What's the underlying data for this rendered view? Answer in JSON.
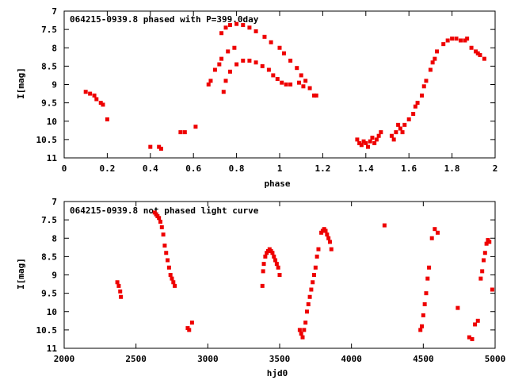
{
  "chart_data": [
    {
      "type": "scatter",
      "title": "064215-0939.8 phased with P=399.0day",
      "xlabel": "phase",
      "ylabel": "I[mag]",
      "xlim": [
        0,
        2
      ],
      "ylim": [
        7,
        11
      ],
      "y_inverted": true,
      "x_ticks": [
        "0",
        "0.2",
        "0.4",
        "0.6",
        "0.8",
        "1",
        "1.2",
        "1.4",
        "1.6",
        "1.8",
        "2"
      ],
      "x_tick_values": [
        0,
        0.2,
        0.4,
        0.6,
        0.8,
        1.0,
        1.2,
        1.4,
        1.6,
        1.8,
        2.0
      ],
      "y_ticks": [
        "7",
        "7.5",
        "8",
        "8.5",
        "9",
        "9.5",
        "10",
        "10.5",
        "11"
      ],
      "y_tick_values": [
        7,
        7.5,
        8,
        8.5,
        9,
        9.5,
        10,
        10.5,
        11
      ],
      "series_color": "#ee0000",
      "points": [
        [
          0.1,
          9.2
        ],
        [
          0.12,
          9.25
        ],
        [
          0.14,
          9.3
        ],
        [
          0.15,
          9.4
        ],
        [
          0.17,
          9.5
        ],
        [
          0.18,
          9.55
        ],
        [
          0.2,
          9.95
        ],
        [
          0.4,
          10.7
        ],
        [
          0.44,
          10.7
        ],
        [
          0.45,
          10.75
        ],
        [
          0.54,
          10.3
        ],
        [
          0.56,
          10.3
        ],
        [
          0.61,
          10.15
        ],
        [
          0.67,
          9.0
        ],
        [
          0.68,
          8.9
        ],
        [
          0.7,
          8.6
        ],
        [
          0.72,
          8.45
        ],
        [
          0.73,
          8.3
        ],
        [
          0.76,
          8.1
        ],
        [
          0.79,
          8.0
        ],
        [
          0.73,
          7.6
        ],
        [
          0.75,
          7.45
        ],
        [
          0.77,
          7.38
        ],
        [
          0.8,
          7.35
        ],
        [
          0.83,
          7.38
        ],
        [
          0.86,
          7.45
        ],
        [
          0.89,
          7.55
        ],
        [
          0.93,
          7.7
        ],
        [
          0.96,
          7.85
        ],
        [
          1.0,
          8.0
        ],
        [
          1.02,
          8.15
        ],
        [
          1.05,
          8.35
        ],
        [
          1.08,
          8.55
        ],
        [
          1.1,
          8.75
        ],
        [
          1.12,
          8.9
        ],
        [
          1.14,
          9.1
        ],
        [
          1.16,
          9.3
        ],
        [
          1.17,
          9.3
        ],
        [
          0.74,
          9.2
        ],
        [
          0.75,
          8.9
        ],
        [
          0.77,
          8.65
        ],
        [
          0.8,
          8.45
        ],
        [
          0.83,
          8.35
        ],
        [
          0.86,
          8.35
        ],
        [
          0.89,
          8.4
        ],
        [
          0.92,
          8.5
        ],
        [
          0.95,
          8.6
        ],
        [
          0.97,
          8.75
        ],
        [
          0.99,
          8.85
        ],
        [
          1.01,
          8.95
        ],
        [
          1.03,
          9.0
        ],
        [
          1.05,
          9.0
        ],
        [
          1.09,
          8.95
        ],
        [
          1.11,
          9.05
        ],
        [
          1.36,
          10.5
        ],
        [
          1.37,
          10.6
        ],
        [
          1.38,
          10.65
        ],
        [
          1.39,
          10.55
        ],
        [
          1.4,
          10.6
        ],
        [
          1.41,
          10.7
        ],
        [
          1.42,
          10.55
        ],
        [
          1.43,
          10.45
        ],
        [
          1.44,
          10.6
        ],
        [
          1.45,
          10.5
        ],
        [
          1.46,
          10.4
        ],
        [
          1.47,
          10.3
        ],
        [
          1.52,
          10.4
        ],
        [
          1.53,
          10.5
        ],
        [
          1.54,
          10.3
        ],
        [
          1.55,
          10.1
        ],
        [
          1.56,
          10.2
        ],
        [
          1.57,
          10.3
        ],
        [
          1.58,
          10.1
        ],
        [
          1.6,
          9.95
        ],
        [
          1.62,
          9.8
        ],
        [
          1.63,
          9.6
        ],
        [
          1.64,
          9.5
        ],
        [
          1.66,
          9.3
        ],
        [
          1.67,
          9.05
        ],
        [
          1.68,
          8.9
        ],
        [
          1.7,
          8.6
        ],
        [
          1.71,
          8.4
        ],
        [
          1.72,
          8.3
        ],
        [
          1.73,
          8.1
        ],
        [
          1.76,
          7.9
        ],
        [
          1.78,
          7.8
        ],
        [
          1.8,
          7.75
        ],
        [
          1.82,
          7.75
        ],
        [
          1.84,
          7.8
        ],
        [
          1.86,
          7.8
        ],
        [
          1.87,
          7.75
        ],
        [
          1.89,
          8.0
        ],
        [
          1.91,
          8.1
        ],
        [
          1.92,
          8.15
        ],
        [
          1.93,
          8.2
        ],
        [
          1.95,
          8.3
        ]
      ]
    },
    {
      "type": "scatter",
      "title": "064215-0939.8 not phased light curve",
      "xlabel": "hjd0",
      "ylabel": "I[mag]",
      "xlim": [
        2000,
        5000
      ],
      "ylim": [
        7,
        11
      ],
      "y_inverted": true,
      "x_ticks": [
        "2000",
        "2500",
        "3000",
        "3500",
        "4000",
        "4500",
        "5000"
      ],
      "x_tick_values": [
        2000,
        2500,
        3000,
        3500,
        4000,
        4500,
        5000
      ],
      "y_ticks": [
        "7",
        "7.5",
        "8",
        "8.5",
        "9",
        "9.5",
        "10",
        "10.5",
        "11"
      ],
      "y_tick_values": [
        7,
        7.5,
        8,
        8.5,
        9,
        9.5,
        10,
        10.5,
        11
      ],
      "series_color": "#ee0000",
      "points": [
        [
          2370,
          9.2
        ],
        [
          2380,
          9.3
        ],
        [
          2390,
          9.45
        ],
        [
          2395,
          9.6
        ],
        [
          2630,
          7.3
        ],
        [
          2640,
          7.35
        ],
        [
          2650,
          7.4
        ],
        [
          2660,
          7.45
        ],
        [
          2670,
          7.55
        ],
        [
          2680,
          7.7
        ],
        [
          2690,
          7.9
        ],
        [
          2700,
          8.2
        ],
        [
          2710,
          8.4
        ],
        [
          2720,
          8.6
        ],
        [
          2730,
          8.8
        ],
        [
          2740,
          9.0
        ],
        [
          2750,
          9.1
        ],
        [
          2760,
          9.2
        ],
        [
          2770,
          9.3
        ],
        [
          2860,
          10.45
        ],
        [
          2870,
          10.5
        ],
        [
          2890,
          10.3
        ],
        [
          3380,
          9.3
        ],
        [
          3385,
          8.9
        ],
        [
          3390,
          8.7
        ],
        [
          3400,
          8.5
        ],
        [
          3410,
          8.4
        ],
        [
          3420,
          8.35
        ],
        [
          3430,
          8.3
        ],
        [
          3440,
          8.35
        ],
        [
          3450,
          8.4
        ],
        [
          3460,
          8.5
        ],
        [
          3470,
          8.6
        ],
        [
          3480,
          8.7
        ],
        [
          3490,
          8.8
        ],
        [
          3500,
          9.0
        ],
        [
          3640,
          10.5
        ],
        [
          3650,
          10.6
        ],
        [
          3660,
          10.7
        ],
        [
          3670,
          10.5
        ],
        [
          3680,
          10.3
        ],
        [
          3690,
          10.0
        ],
        [
          3700,
          9.8
        ],
        [
          3710,
          9.6
        ],
        [
          3720,
          9.4
        ],
        [
          3730,
          9.2
        ],
        [
          3740,
          9.0
        ],
        [
          3750,
          8.8
        ],
        [
          3760,
          8.5
        ],
        [
          3770,
          8.3
        ],
        [
          3790,
          7.85
        ],
        [
          3800,
          7.8
        ],
        [
          3810,
          7.75
        ],
        [
          3820,
          7.8
        ],
        [
          3830,
          7.9
        ],
        [
          3840,
          8.0
        ],
        [
          3850,
          8.1
        ],
        [
          3860,
          8.3
        ],
        [
          4230,
          7.65
        ],
        [
          4480,
          10.5
        ],
        [
          4490,
          10.4
        ],
        [
          4500,
          10.1
        ],
        [
          4510,
          9.8
        ],
        [
          4520,
          9.5
        ],
        [
          4530,
          9.1
        ],
        [
          4540,
          8.8
        ],
        [
          4560,
          8.0
        ],
        [
          4580,
          7.75
        ],
        [
          4600,
          7.85
        ],
        [
          4740,
          9.9
        ],
        [
          4820,
          10.7
        ],
        [
          4840,
          10.75
        ],
        [
          4860,
          10.35
        ],
        [
          4880,
          10.25
        ],
        [
          4900,
          9.1
        ],
        [
          4910,
          8.9
        ],
        [
          4920,
          8.6
        ],
        [
          4930,
          8.4
        ],
        [
          4940,
          8.15
        ],
        [
          4950,
          8.05
        ],
        [
          4960,
          8.1
        ],
        [
          4980,
          9.4
        ]
      ]
    }
  ]
}
